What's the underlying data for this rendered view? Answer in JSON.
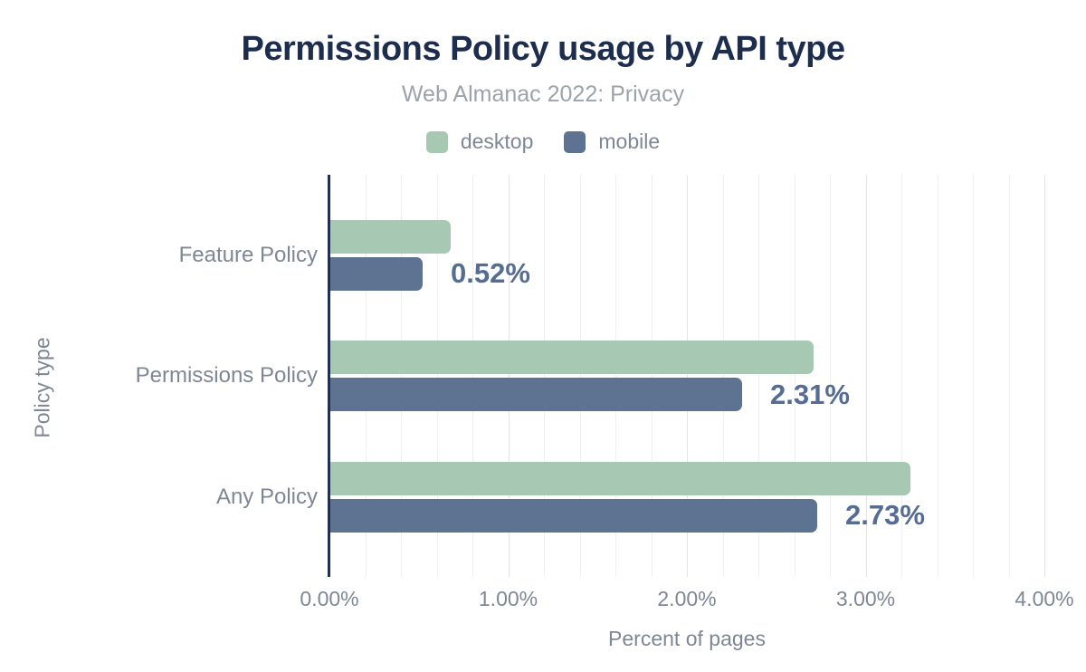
{
  "header": {
    "title": "Permissions Policy usage by API type",
    "subtitle": "Web Almanac 2022: Privacy"
  },
  "colors": {
    "title": "#1d2d4e",
    "subtitle": "#9ca3ab",
    "axis_text": "#7e8795",
    "axis_line": "#22304f",
    "gridline_minor": "#efefef",
    "gridline_major": "#e5e5e5",
    "desktop": "#a7c9b4",
    "mobile": "#5e7291",
    "value_label": "#556c93",
    "background": "#ffffff"
  },
  "chart_data": {
    "type": "bar",
    "orientation": "horizontal",
    "title": "Permissions Policy usage by API type",
    "subtitle": "Web Almanac 2022: Privacy",
    "categories": [
      "Feature Policy",
      "Permissions Policy",
      "Any Policy"
    ],
    "series": [
      {
        "name": "desktop",
        "color": "#a7c9b4",
        "values": [
          0.68,
          2.71,
          3.25
        ]
      },
      {
        "name": "mobile",
        "color": "#5e7291",
        "values": [
          0.52,
          2.31,
          2.73
        ]
      }
    ],
    "value_labels": {
      "labeled_series": "mobile",
      "texts": [
        "0.52%",
        "2.31%",
        "2.73%"
      ]
    },
    "xlabel": "Percent of pages",
    "ylabel": "Policy type",
    "x_ticks": [
      0,
      1,
      2,
      3,
      4
    ],
    "x_tick_labels": [
      "0.00%",
      "1.00%",
      "2.00%",
      "3.00%",
      "4.00%"
    ],
    "xlim": [
      0,
      4.05
    ],
    "grid": {
      "vertical_minor_step": 0.2,
      "vertical_major_step": 1.0,
      "horizontal": false
    },
    "legend_position": "top",
    "units": "percent"
  }
}
